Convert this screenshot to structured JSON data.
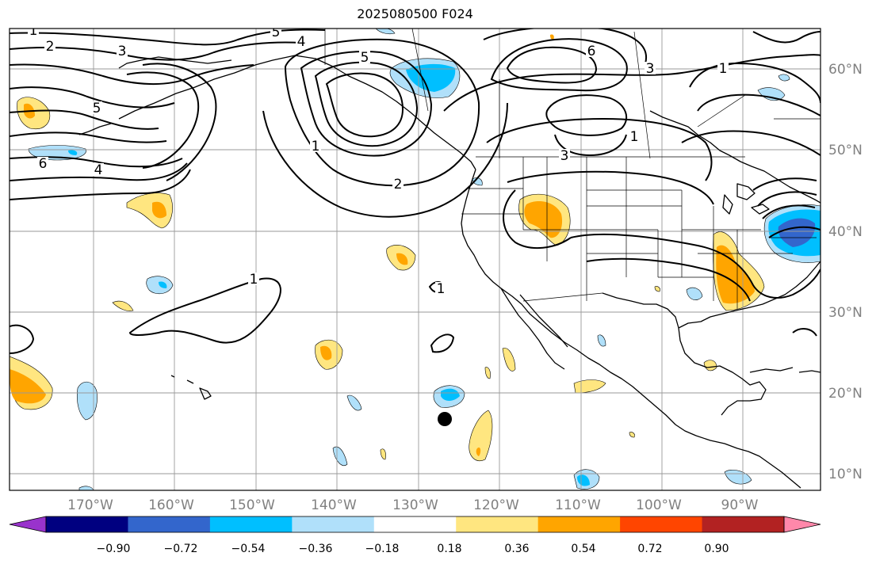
{
  "title": "2025080500 F024",
  "lon_labels": [
    "170°W",
    "160°W",
    "150°W",
    "140°W",
    "130°W",
    "120°W",
    "110°W",
    "100°W",
    "90°W"
  ],
  "lat_labels": [
    "60°N",
    "50°N",
    "40°N",
    "30°N",
    "20°N",
    "10°N"
  ],
  "colorbar": {
    "ticks": [
      "−0.90",
      "−0.72",
      "−0.54",
      "−0.36",
      "−0.18",
      "0.18",
      "0.36",
      "0.54",
      "0.72",
      "0.90"
    ],
    "colors": [
      "#9933cc",
      "#000080",
      "#3366cc",
      "#00bfff",
      "#b0e0fa",
      "#ffffff",
      "#ffe680",
      "#ffa500",
      "#ff4500",
      "#b22222",
      "#ff88aa"
    ]
  },
  "contour_labels": [
    "1",
    "2",
    "3",
    "5",
    "4",
    "6",
    "5",
    "4",
    "1",
    "2",
    "5",
    "6",
    "3",
    "1",
    "1",
    "3",
    "1",
    "1"
  ],
  "fill_colors": {
    "pos1": "#ffe680",
    "pos2": "#ffa500",
    "neg1": "#b0e0fa",
    "neg2": "#00bfff",
    "neg3": "#3366cc"
  },
  "marker": "storm-position-dot"
}
